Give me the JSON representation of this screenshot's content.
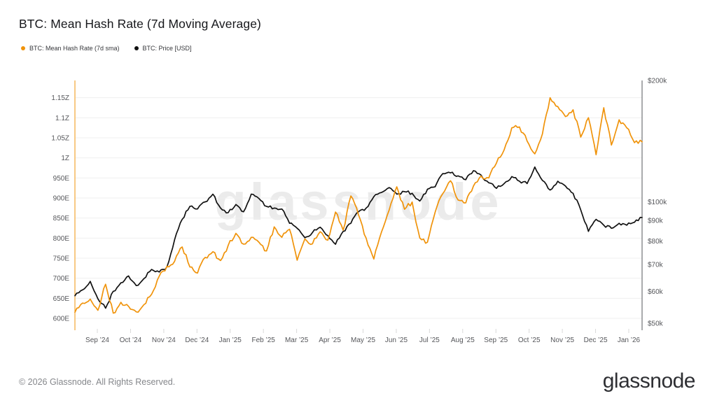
{
  "header": {
    "title": "BTC: Mean Hash Rate (7d Moving Average)"
  },
  "legend": [
    {
      "label": "BTC: Mean Hash Rate (7d sma)",
      "color": "#f0930a"
    },
    {
      "label": "BTC: Price [USD]",
      "color": "#111111"
    }
  ],
  "watermark": "glassnode",
  "footer": {
    "copyright": "© 2026 Glassnode. All Rights Reserved.",
    "logo_text": "glassnode"
  },
  "chart_data": {
    "type": "line",
    "title": "BTC: Mean Hash Rate (7d Moving Average)",
    "grid": "horizontal-only",
    "legend_position": "top-left",
    "x_tick_labels": [
      "Sep ’24",
      "Oct ’24",
      "Nov ’24",
      "Dec ’24",
      "Jan ’25",
      "Feb ’25",
      "Mar ’25",
      "Apr ’25",
      "May ’25",
      "Jun ’25",
      "Jul ’25",
      "Aug ’25",
      "Sep ’25",
      "Oct ’25",
      "Nov ’25",
      "Dec ’25",
      "Jan ’26"
    ],
    "x_range": "mid-Aug 2024 to mid-Jan 2026",
    "sampling": "weekly",
    "left_axis": {
      "metric": "BTC mean hash rate (7d sma)",
      "unit": "hashes per second",
      "scale": "linear",
      "range_ehs": [
        590,
        1175
      ],
      "ticks": [
        {
          "value": 1150,
          "label": "1.15Z"
        },
        {
          "value": 1100,
          "label": "1.1Z"
        },
        {
          "value": 1050,
          "label": "1.05Z"
        },
        {
          "value": 1000,
          "label": "1Z"
        },
        {
          "value": 950,
          "label": "950E"
        },
        {
          "value": 900,
          "label": "900E"
        },
        {
          "value": 850,
          "label": "850E"
        },
        {
          "value": 800,
          "label": "800E"
        },
        {
          "value": 750,
          "label": "750E"
        },
        {
          "value": 700,
          "label": "700E"
        },
        {
          "value": 650,
          "label": "650E"
        },
        {
          "value": 600,
          "label": "600E"
        }
      ]
    },
    "right_axis": {
      "metric": "BTC price",
      "unit": "USD",
      "scale": "log",
      "range_usd_k": [
        50,
        200
      ],
      "ticks": [
        {
          "value": 200,
          "label": "$200k"
        },
        {
          "value": 100,
          "label": "$100k"
        },
        {
          "value": 90,
          "label": "$90k"
        },
        {
          "value": 80,
          "label": "$80k"
        },
        {
          "value": 70,
          "label": "$70k"
        },
        {
          "value": 60,
          "label": "$60k"
        },
        {
          "value": 50,
          "label": "$50k"
        }
      ]
    },
    "series": [
      {
        "name": "BTC: Price [USD]",
        "axis": "right",
        "color": "#111111",
        "unit": "USD thousands",
        "values": [
          58.5,
          60.5,
          63.5,
          57.5,
          54.5,
          60,
          63,
          65.5,
          62,
          64.5,
          68,
          67,
          69,
          80.5,
          90.5,
          97.5,
          96,
          100,
          104.5,
          96.5,
          94,
          98.5,
          94.5,
          104.5,
          102,
          97.5,
          96.5,
          96,
          88.5,
          86,
          81.5,
          84,
          86.5,
          82.5,
          78.5,
          84.5,
          88.5,
          94.5,
          96.5,
          103,
          105.5,
          108.5,
          104.5,
          106,
          105,
          100.5,
          107.5,
          109,
          117.5,
          118,
          116,
          113.5,
          119.5,
          116.5,
          111.5,
          108,
          111,
          115.5,
          112.5,
          111,
          122,
          113,
          107,
          112.5,
          109.5,
          105,
          95.5,
          84.5,
          90.5,
          87.5,
          86,
          88.5,
          87.5,
          89,
          91.5
        ]
      },
      {
        "name": "BTC: Mean Hash Rate (7d sma)",
        "axis": "left",
        "color": "#f0930a",
        "unit": "EH/s",
        "values": [
          615,
          638,
          648,
          620,
          685,
          613,
          640,
          630,
          616,
          634,
          660,
          705,
          730,
          742,
          778,
          728,
          713,
          752,
          766,
          744,
          782,
          812,
          785,
          802,
          790,
          768,
          828,
          802,
          822,
          745,
          798,
          786,
          816,
          795,
          865,
          820,
          905,
          858,
          800,
          748,
          815,
          870,
          928,
          872,
          890,
          800,
          790,
          865,
          911,
          943,
          895,
          888,
          930,
          955,
          950,
          987,
          1020,
          1075,
          1077,
          1042,
          1010,
          1060,
          1150,
          1128,
          1103,
          1120,
          1052,
          1100,
          1008,
          1125,
          1032,
          1095,
          1075,
          1038,
          1040
        ]
      }
    ]
  }
}
